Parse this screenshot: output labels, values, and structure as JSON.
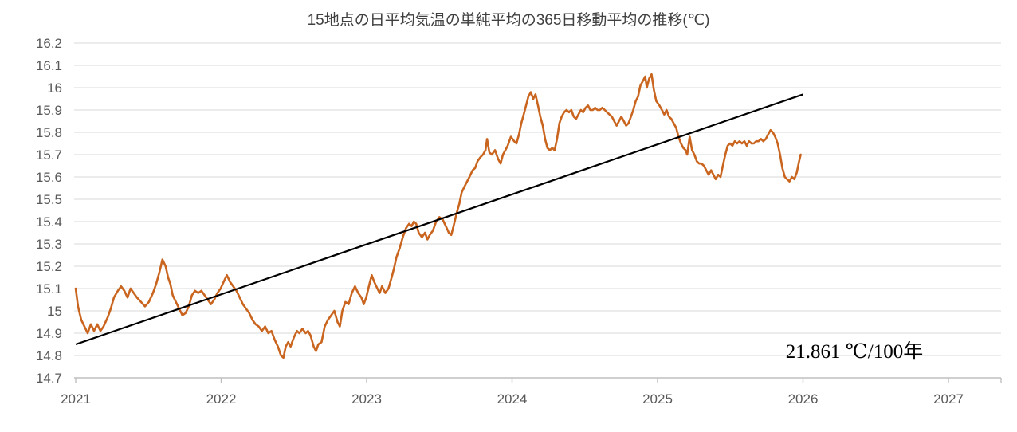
{
  "chart_data": {
    "type": "line",
    "title": "15地点の日平均気温の単純平均の365日移動平均の推移(℃)",
    "annotation": "21.861 ℃/100年",
    "xlabel": "",
    "ylabel": "",
    "xlim": [
      2021,
      2027.37
    ],
    "ylim": [
      14.7,
      16.2
    ],
    "grid": true,
    "legend": "none",
    "x_ticks": [
      2021,
      2022,
      2023,
      2024,
      2025,
      2026,
      2027
    ],
    "x_tick_labels": [
      "2021",
      "2022",
      "2023",
      "2024",
      "2025",
      "2026",
      "2027"
    ],
    "y_ticks": [
      16.2,
      16.1,
      16.0,
      15.9,
      15.8,
      15.7,
      15.6,
      15.5,
      15.4,
      15.3,
      15.2,
      15.1,
      15.0,
      14.9,
      14.8,
      14.7
    ],
    "y_tick_labels": [
      "16.2",
      "16.1",
      "16",
      "15.9",
      "15.8",
      "15.7",
      "15.6",
      "15.5",
      "15.4",
      "15.3",
      "15.2",
      "15.1",
      "15",
      "14.9",
      "14.8",
      "14.7"
    ],
    "colors": {
      "series": "#C9651F",
      "trend": "#000000",
      "grid": "#D9D9D9",
      "axis": "#BFBFBF",
      "title": "#404040",
      "tick_label": "#595959",
      "annotation": "#000000"
    },
    "trend_line": {
      "start": [
        2021.0,
        14.85
      ],
      "end": [
        2026.0,
        15.97
      ],
      "label": "21.861 ℃/100年"
    },
    "series": [
      {
        "points": [
          [
            2021.0,
            15.1
          ],
          [
            2021.016,
            15.02
          ],
          [
            2021.038,
            14.96
          ],
          [
            2021.06,
            14.93
          ],
          [
            2021.082,
            14.9
          ],
          [
            2021.104,
            14.94
          ],
          [
            2021.126,
            14.91
          ],
          [
            2021.148,
            14.94
          ],
          [
            2021.17,
            14.91
          ],
          [
            2021.191,
            14.93
          ],
          [
            2021.219,
            14.97
          ],
          [
            2021.241,
            15.01
          ],
          [
            2021.263,
            15.06
          ],
          [
            2021.29,
            15.09
          ],
          [
            2021.312,
            15.11
          ],
          [
            2021.334,
            15.09
          ],
          [
            2021.356,
            15.06
          ],
          [
            2021.377,
            15.1
          ],
          [
            2021.399,
            15.08
          ],
          [
            2021.421,
            15.06
          ],
          [
            2021.449,
            15.04
          ],
          [
            2021.476,
            15.02
          ],
          [
            2021.503,
            15.04
          ],
          [
            2021.531,
            15.08
          ],
          [
            2021.553,
            15.12
          ],
          [
            2021.574,
            15.17
          ],
          [
            2021.596,
            15.23
          ],
          [
            2021.618,
            15.2
          ],
          [
            2021.635,
            15.15
          ],
          [
            2021.651,
            15.12
          ],
          [
            2021.667,
            15.07
          ],
          [
            2021.689,
            15.04
          ],
          [
            2021.711,
            15.01
          ],
          [
            2021.733,
            14.98
          ],
          [
            2021.755,
            14.99
          ],
          [
            2021.777,
            15.02
          ],
          [
            2021.799,
            15.07
          ],
          [
            2021.82,
            15.09
          ],
          [
            2021.842,
            15.08
          ],
          [
            2021.864,
            15.09
          ],
          [
            2021.886,
            15.07
          ],
          [
            2021.908,
            15.05
          ],
          [
            2021.93,
            15.03
          ],
          [
            2021.952,
            15.05
          ],
          [
            2021.974,
            15.08
          ],
          [
            2021.996,
            15.1
          ],
          [
            2022.017,
            15.13
          ],
          [
            2022.039,
            15.16
          ],
          [
            2022.061,
            15.13
          ],
          [
            2022.083,
            15.11
          ],
          [
            2022.105,
            15.09
          ],
          [
            2022.127,
            15.06
          ],
          [
            2022.149,
            15.03
          ],
          [
            2022.171,
            15.01
          ],
          [
            2022.193,
            14.99
          ],
          [
            2022.215,
            14.96
          ],
          [
            2022.236,
            14.94
          ],
          [
            2022.258,
            14.93
          ],
          [
            2022.28,
            14.91
          ],
          [
            2022.302,
            14.93
          ],
          [
            2022.324,
            14.9
          ],
          [
            2022.346,
            14.91
          ],
          [
            2022.368,
            14.87
          ],
          [
            2022.39,
            14.84
          ],
          [
            2022.411,
            14.8
          ],
          [
            2022.428,
            14.79
          ],
          [
            2022.444,
            14.84
          ],
          [
            2022.461,
            14.86
          ],
          [
            2022.477,
            14.84
          ],
          [
            2022.499,
            14.88
          ],
          [
            2022.521,
            14.91
          ],
          [
            2022.537,
            14.9
          ],
          [
            2022.559,
            14.92
          ],
          [
            2022.581,
            14.9
          ],
          [
            2022.597,
            14.91
          ],
          [
            2022.614,
            14.89
          ],
          [
            2022.636,
            14.84
          ],
          [
            2022.652,
            14.82
          ],
          [
            2022.668,
            14.85
          ],
          [
            2022.69,
            14.86
          ],
          [
            2022.712,
            14.93
          ],
          [
            2022.734,
            14.96
          ],
          [
            2022.756,
            14.98
          ],
          [
            2022.778,
            15.0
          ],
          [
            2022.8,
            14.95
          ],
          [
            2022.816,
            14.93
          ],
          [
            2022.833,
            15.0
          ],
          [
            2022.854,
            15.04
          ],
          [
            2022.876,
            15.03
          ],
          [
            2022.898,
            15.08
          ],
          [
            2022.92,
            15.11
          ],
          [
            2022.942,
            15.08
          ],
          [
            2022.964,
            15.06
          ],
          [
            2022.98,
            15.03
          ],
          [
            2022.997,
            15.06
          ],
          [
            2023.019,
            15.12
          ],
          [
            2023.035,
            15.16
          ],
          [
            2023.052,
            15.13
          ],
          [
            2023.074,
            15.1
          ],
          [
            2023.09,
            15.08
          ],
          [
            2023.106,
            15.11
          ],
          [
            2023.128,
            15.08
          ],
          [
            2023.15,
            15.1
          ],
          [
            2023.172,
            15.15
          ],
          [
            2023.188,
            15.19
          ],
          [
            2023.205,
            15.24
          ],
          [
            2023.227,
            15.28
          ],
          [
            2023.249,
            15.33
          ],
          [
            2023.27,
            15.37
          ],
          [
            2023.292,
            15.39
          ],
          [
            2023.309,
            15.38
          ],
          [
            2023.325,
            15.4
          ],
          [
            2023.341,
            15.39
          ],
          [
            2023.358,
            15.35
          ],
          [
            2023.38,
            15.33
          ],
          [
            2023.401,
            15.35
          ],
          [
            2023.418,
            15.32
          ],
          [
            2023.434,
            15.34
          ],
          [
            2023.456,
            15.36
          ],
          [
            2023.478,
            15.4
          ],
          [
            2023.5,
            15.42
          ],
          [
            2023.522,
            15.41
          ],
          [
            2023.544,
            15.38
          ],
          [
            2023.565,
            15.35
          ],
          [
            2023.582,
            15.34
          ],
          [
            2023.598,
            15.38
          ],
          [
            2023.62,
            15.44
          ],
          [
            2023.637,
            15.48
          ],
          [
            2023.653,
            15.53
          ],
          [
            2023.675,
            15.56
          ],
          [
            2023.691,
            15.58
          ],
          [
            2023.707,
            15.6
          ],
          [
            2023.729,
            15.63
          ],
          [
            2023.746,
            15.64
          ],
          [
            2023.762,
            15.67
          ],
          [
            2023.784,
            15.69
          ],
          [
            2023.8,
            15.7
          ],
          [
            2023.817,
            15.72
          ],
          [
            2023.828,
            15.77
          ],
          [
            2023.844,
            15.71
          ],
          [
            2023.861,
            15.7
          ],
          [
            2023.883,
            15.72
          ],
          [
            2023.904,
            15.68
          ],
          [
            2023.921,
            15.66
          ],
          [
            2023.937,
            15.7
          ],
          [
            2023.954,
            15.72
          ],
          [
            2023.97,
            15.74
          ],
          [
            2023.992,
            15.78
          ],
          [
            2024.014,
            15.76
          ],
          [
            2024.03,
            15.75
          ],
          [
            2024.047,
            15.79
          ],
          [
            2024.063,
            15.84
          ],
          [
            2024.08,
            15.88
          ],
          [
            2024.096,
            15.92
          ],
          [
            2024.112,
            15.96
          ],
          [
            2024.129,
            15.98
          ],
          [
            2024.145,
            15.95
          ],
          [
            2024.161,
            15.97
          ],
          [
            2024.178,
            15.92
          ],
          [
            2024.194,
            15.87
          ],
          [
            2024.211,
            15.83
          ],
          [
            2024.227,
            15.77
          ],
          [
            2024.243,
            15.73
          ],
          [
            2024.26,
            15.72
          ],
          [
            2024.276,
            15.73
          ],
          [
            2024.292,
            15.72
          ],
          [
            2024.309,
            15.77
          ],
          [
            2024.325,
            15.84
          ],
          [
            2024.341,
            15.87
          ],
          [
            2024.358,
            15.89
          ],
          [
            2024.374,
            15.9
          ],
          [
            2024.391,
            15.89
          ],
          [
            2024.407,
            15.9
          ],
          [
            2024.424,
            15.87
          ],
          [
            2024.44,
            15.86
          ],
          [
            2024.456,
            15.88
          ],
          [
            2024.473,
            15.9
          ],
          [
            2024.489,
            15.89
          ],
          [
            2024.505,
            15.91
          ],
          [
            2024.522,
            15.92
          ],
          [
            2024.538,
            15.9
          ],
          [
            2024.555,
            15.9
          ],
          [
            2024.571,
            15.91
          ],
          [
            2024.587,
            15.9
          ],
          [
            2024.604,
            15.9
          ],
          [
            2024.62,
            15.91
          ],
          [
            2024.637,
            15.9
          ],
          [
            2024.653,
            15.89
          ],
          [
            2024.669,
            15.88
          ],
          [
            2024.686,
            15.87
          ],
          [
            2024.702,
            15.85
          ],
          [
            2024.719,
            15.83
          ],
          [
            2024.735,
            15.85
          ],
          [
            2024.751,
            15.87
          ],
          [
            2024.768,
            15.85
          ],
          [
            2024.784,
            15.83
          ],
          [
            2024.8,
            15.84
          ],
          [
            2024.817,
            15.87
          ],
          [
            2024.833,
            15.9
          ],
          [
            2024.85,
            15.94
          ],
          [
            2024.866,
            15.96
          ],
          [
            2024.882,
            16.01
          ],
          [
            2024.899,
            16.03
          ],
          [
            2024.915,
            16.05
          ],
          [
            2024.926,
            16.0
          ],
          [
            2024.942,
            16.04
          ],
          [
            2024.959,
            16.06
          ],
          [
            2024.975,
            15.99
          ],
          [
            2024.991,
            15.94
          ],
          [
            2025.013,
            15.92
          ],
          [
            2025.03,
            15.9
          ],
          [
            2025.046,
            15.88
          ],
          [
            2025.062,
            15.9
          ],
          [
            2025.079,
            15.87
          ],
          [
            2025.095,
            15.86
          ],
          [
            2025.111,
            15.84
          ],
          [
            2025.128,
            15.82
          ],
          [
            2025.144,
            15.78
          ],
          [
            2025.161,
            15.75
          ],
          [
            2025.177,
            15.73
          ],
          [
            2025.193,
            15.72
          ],
          [
            2025.204,
            15.7
          ],
          [
            2025.221,
            15.78
          ],
          [
            2025.237,
            15.72
          ],
          [
            2025.253,
            15.7
          ],
          [
            2025.27,
            15.67
          ],
          [
            2025.286,
            15.66
          ],
          [
            2025.302,
            15.66
          ],
          [
            2025.319,
            15.65
          ],
          [
            2025.335,
            15.63
          ],
          [
            2025.351,
            15.61
          ],
          [
            2025.368,
            15.63
          ],
          [
            2025.384,
            15.61
          ],
          [
            2025.4,
            15.59
          ],
          [
            2025.417,
            15.61
          ],
          [
            2025.433,
            15.6
          ],
          [
            2025.449,
            15.65
          ],
          [
            2025.466,
            15.7
          ],
          [
            2025.482,
            15.74
          ],
          [
            2025.498,
            15.75
          ],
          [
            2025.515,
            15.74
          ],
          [
            2025.531,
            15.76
          ],
          [
            2025.547,
            15.75
          ],
          [
            2025.564,
            15.76
          ],
          [
            2025.58,
            15.75
          ],
          [
            2025.597,
            15.76
          ],
          [
            2025.613,
            15.74
          ],
          [
            2025.629,
            15.76
          ],
          [
            2025.646,
            15.75
          ],
          [
            2025.662,
            15.75
          ],
          [
            2025.678,
            15.76
          ],
          [
            2025.695,
            15.76
          ],
          [
            2025.711,
            15.77
          ],
          [
            2025.727,
            15.76
          ],
          [
            2025.744,
            15.77
          ],
          [
            2025.76,
            15.79
          ],
          [
            2025.777,
            15.81
          ],
          [
            2025.793,
            15.8
          ],
          [
            2025.809,
            15.78
          ],
          [
            2025.826,
            15.75
          ],
          [
            2025.842,
            15.7
          ],
          [
            2025.858,
            15.64
          ],
          [
            2025.875,
            15.6
          ],
          [
            2025.891,
            15.59
          ],
          [
            2025.907,
            15.58
          ],
          [
            2025.924,
            15.6
          ],
          [
            2025.94,
            15.59
          ],
          [
            2025.957,
            15.62
          ],
          [
            2025.973,
            15.67
          ],
          [
            2025.984,
            15.7
          ]
        ]
      }
    ]
  }
}
